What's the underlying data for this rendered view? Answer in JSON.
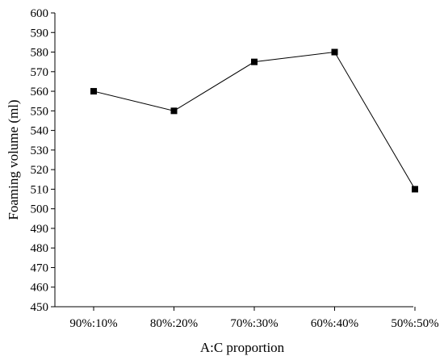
{
  "chart_data": {
    "type": "line",
    "title": "",
    "xlabel": "A:C proportion",
    "ylabel": "Foaming volume (ml)",
    "categories": [
      "90%:10%",
      "80%:20%",
      "70%:30%",
      "60%:40%",
      "50%:50%"
    ],
    "series": [
      {
        "values": [
          560,
          550,
          575,
          580,
          510
        ]
      }
    ],
    "ylim": [
      450,
      600
    ],
    "yticks": [
      450,
      460,
      470,
      480,
      490,
      500,
      510,
      520,
      530,
      540,
      550,
      560,
      570,
      580,
      590,
      600
    ],
    "grid": false,
    "legend": "none",
    "colors": {
      "line": "#000000",
      "marker": "#000000",
      "axis": "#000000"
    },
    "marker": "square"
  }
}
